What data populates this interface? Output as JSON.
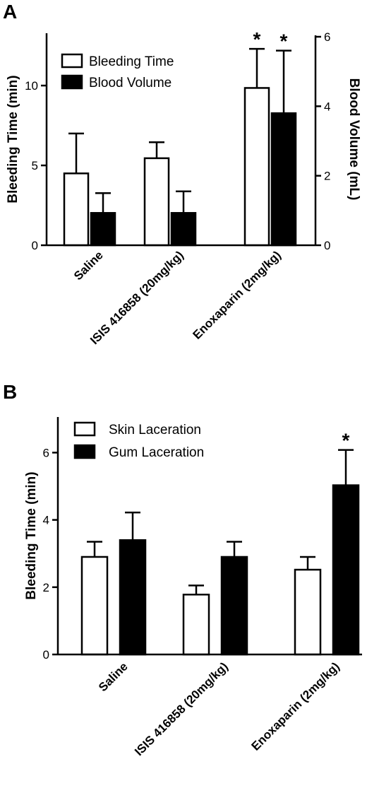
{
  "chart_data": [
    {
      "panel": "A",
      "type": "bar",
      "categories": [
        "Saline",
        "ISIS 416858 (20mg/kg)",
        "Enoxaparin (2mg/kg)"
      ],
      "ylabel": "Bleeding Time (min)",
      "y2label": "Blood Volume (mL)",
      "ylim": [
        0,
        12.8
      ],
      "y2lim": [
        0,
        6
      ],
      "yticks": [
        "0",
        "5",
        "10"
      ],
      "y2ticks": [
        "0",
        "2",
        "4",
        "6"
      ],
      "legend_position": "top-left",
      "series": [
        {
          "name": "Bleeding Time",
          "axis": "left",
          "fill": "#ffffff",
          "values": [
            4.5,
            5.45,
            9.85
          ],
          "errors": [
            2.5,
            1.0,
            2.45
          ],
          "significance": [
            "",
            "",
            "*"
          ]
        },
        {
          "name": "Blood Volume",
          "axis": "right",
          "fill": "#000000",
          "values": [
            0.93,
            0.93,
            3.8
          ],
          "errors": [
            0.57,
            0.62,
            1.8
          ],
          "significance": [
            "",
            "",
            "*"
          ]
        }
      ]
    },
    {
      "panel": "B",
      "type": "bar",
      "categories": [
        "Saline",
        "ISIS 416858 (20mg/kg)",
        "Enoxaparin (2mg/kg)"
      ],
      "ylabel": "Bleeding Time (min)",
      "ylim": [
        0,
        7
      ],
      "yticks": [
        "0",
        "2",
        "4",
        "6"
      ],
      "legend_position": "top-left",
      "series": [
        {
          "name": "Skin Laceration",
          "axis": "left",
          "fill": "#ffffff",
          "values": [
            2.9,
            1.78,
            2.52
          ],
          "errors": [
            0.45,
            0.27,
            0.38
          ],
          "significance": [
            "",
            "",
            ""
          ]
        },
        {
          "name": "Gum Laceration",
          "axis": "left",
          "fill": "#000000",
          "values": [
            3.4,
            2.9,
            5.03
          ],
          "errors": [
            0.82,
            0.45,
            1.05
          ],
          "significance": [
            "",
            "",
            "*"
          ]
        }
      ]
    }
  ]
}
